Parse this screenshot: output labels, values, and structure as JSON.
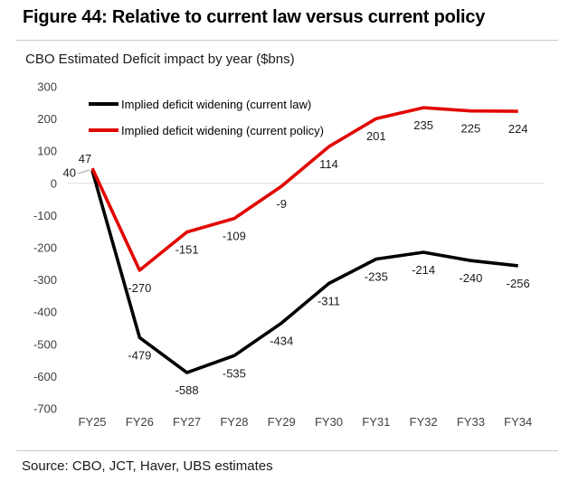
{
  "figure": {
    "title": "Figure 44: Relative to current law versus current policy",
    "subtitle": "CBO Estimated Deficit impact by year ($bns)",
    "source": "Source: CBO, JCT, Haver, UBS estimates"
  },
  "chart_data": {
    "type": "line",
    "title": "CBO Estimated Deficit impact by year ($bns)",
    "categories": [
      "FY25",
      "FY26",
      "FY27",
      "FY28",
      "FY29",
      "FY30",
      "FY31",
      "FY32",
      "FY33",
      "FY34"
    ],
    "series": [
      {
        "name": "Implied deficit widening (current law)",
        "color": "#000000",
        "values": [
          40,
          -479,
          -588,
          -535,
          -434,
          -311,
          -235,
          -214,
          -240,
          -256
        ]
      },
      {
        "name": "Implied deficit widening  (current policy)",
        "color": "#e10600",
        "values": [
          47,
          -270,
          -151,
          -109,
          -9,
          114,
          201,
          235,
          225,
          224
        ]
      }
    ],
    "xlabel": "",
    "ylabel": "",
    "ylim": [
      -700,
      300
    ],
    "yticks": [
      300,
      200,
      100,
      0,
      -100,
      -200,
      -300,
      -400,
      -500,
      -600,
      -700
    ],
    "grid": "zero-line-only",
    "legend_position": "top-left",
    "data_labels": true
  }
}
